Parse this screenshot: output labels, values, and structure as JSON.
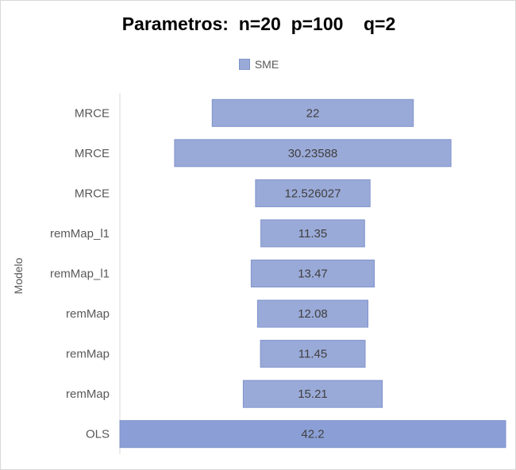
{
  "chart_data": {
    "type": "bar",
    "orientation": "horizontal",
    "title": "Parametros:  n=20  p=100    q=2",
    "ylabel": "Modelo",
    "xlabel": "",
    "legend_position": "top",
    "grid": false,
    "series": [
      {
        "name": "SME",
        "color": "#9aaad8",
        "categories": [
          "MRCE",
          "MRCE",
          "MRCE",
          "remMap_l1",
          "remMap_l1",
          "remMap",
          "remMap",
          "remMap",
          "OLS"
        ],
        "values": [
          22,
          30.23588,
          12.526027,
          11.35,
          13.47,
          12.08,
          11.45,
          15.21,
          42.2
        ],
        "value_labels": [
          "22",
          "30.23588",
          "12.526027",
          "11.35",
          "13.47",
          "12.08",
          "11.45",
          "15.21",
          "42.2"
        ]
      }
    ],
    "bar_style": "centered"
  }
}
